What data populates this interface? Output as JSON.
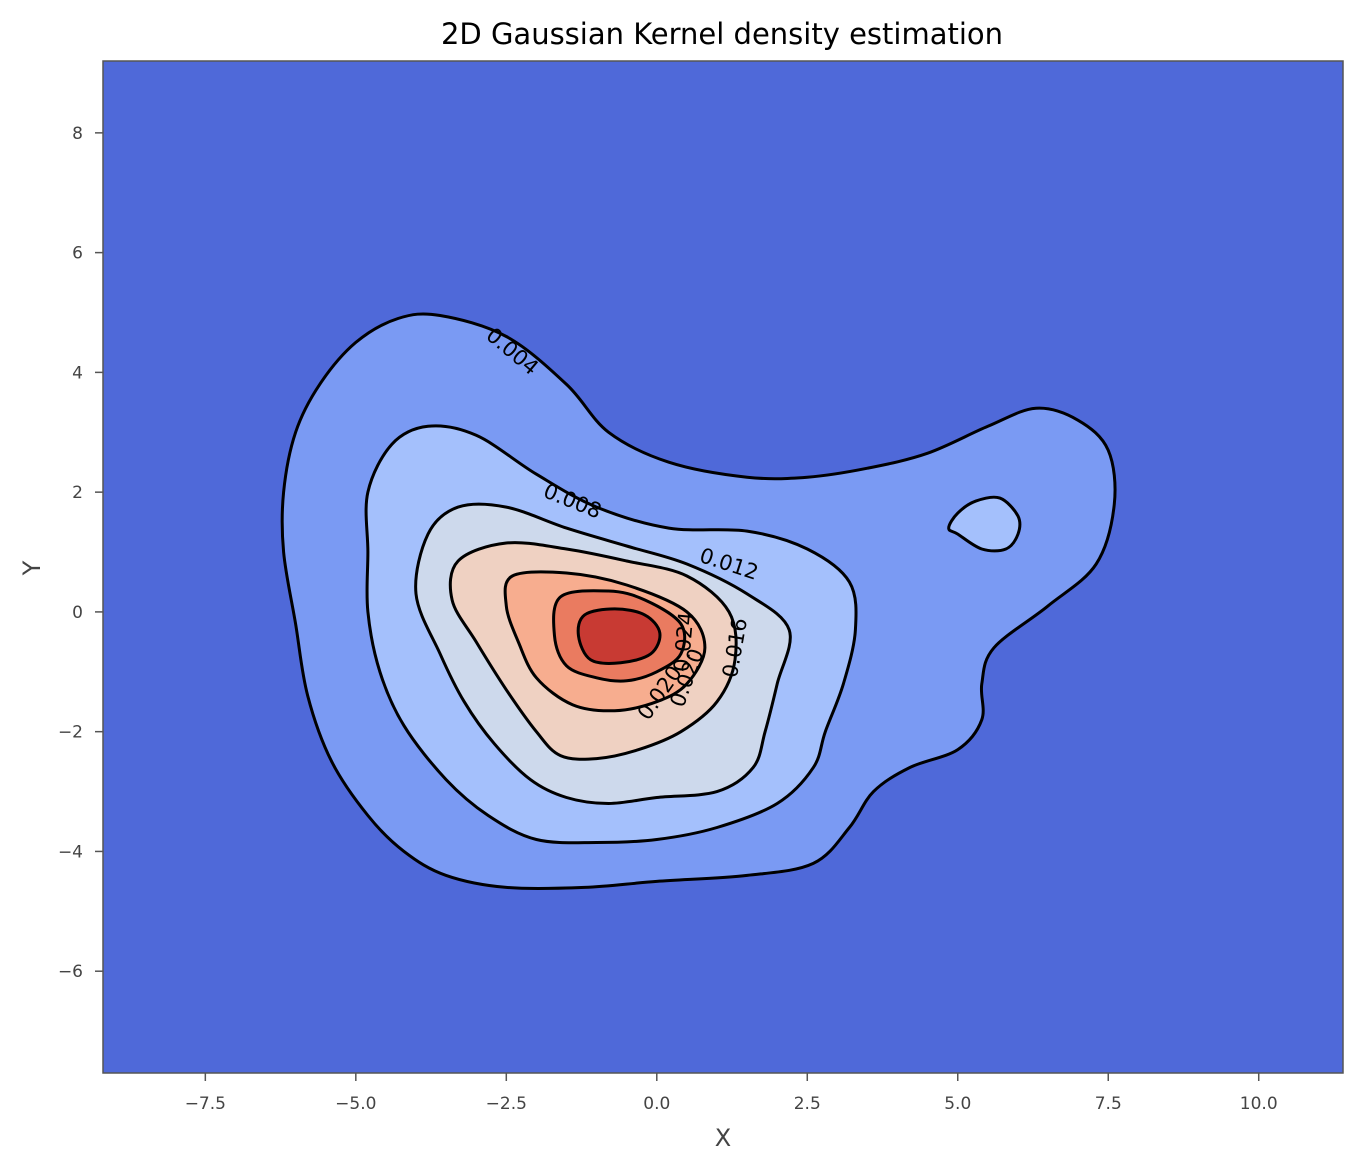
{
  "chart_data": {
    "type": "contour",
    "title": "2D Gaussian Kernel density estimation",
    "xlabel": "X",
    "ylabel": "Y",
    "xlim": [
      -9.2,
      11.4
    ],
    "ylim": [
      -7.7,
      9.2
    ],
    "xticks": [
      -7.5,
      -5.0,
      -2.5,
      0.0,
      2.5,
      5.0,
      7.5,
      10.0
    ],
    "xtick_labels": [
      "−7.5",
      "−5.0",
      "−2.5",
      "0.0",
      "2.5",
      "5.0",
      "7.5",
      "10.0"
    ],
    "yticks": [
      -6,
      -4,
      -2,
      0,
      2,
      4,
      6,
      8
    ],
    "ytick_labels": [
      "−6",
      "−4",
      "−2",
      "0",
      "2",
      "4",
      "6",
      "8"
    ],
    "grid": false,
    "colormap": "coolwarm",
    "level_colors": [
      "#4f69d9",
      "#7a9af3",
      "#a4c0fc",
      "#cdd9ec",
      "#efd1c2",
      "#f7ad8f",
      "#ea7b60",
      "#c83a33"
    ],
    "line_color": "#000000",
    "levels": [
      {
        "value": 0.004,
        "label": "0.004",
        "polygons": [
          [
            [
              -3.6,
              4.95
            ],
            [
              -2.5,
              4.6
            ],
            [
              -1.5,
              3.8
            ],
            [
              -0.8,
              3.0
            ],
            [
              0.2,
              2.5
            ],
            [
              1.5,
              2.25
            ],
            [
              2.5,
              2.25
            ],
            [
              3.5,
              2.4
            ],
            [
              4.5,
              2.65
            ],
            [
              5.5,
              3.1
            ],
            [
              6.3,
              3.4
            ],
            [
              7.0,
              3.2
            ],
            [
              7.5,
              2.7
            ],
            [
              7.6,
              1.8
            ],
            [
              7.3,
              0.8
            ],
            [
              6.5,
              0.1
            ],
            [
              5.6,
              -0.6
            ],
            [
              5.4,
              -1.2
            ],
            [
              5.4,
              -1.8
            ],
            [
              5.0,
              -2.3
            ],
            [
              4.2,
              -2.6
            ],
            [
              3.6,
              -3.0
            ],
            [
              3.2,
              -3.6
            ],
            [
              2.6,
              -4.2
            ],
            [
              1.5,
              -4.4
            ],
            [
              0.0,
              -4.5
            ],
            [
              -1.2,
              -4.6
            ],
            [
              -2.5,
              -4.6
            ],
            [
              -3.5,
              -4.4
            ],
            [
              -4.2,
              -4.0
            ],
            [
              -4.8,
              -3.4
            ],
            [
              -5.4,
              -2.5
            ],
            [
              -5.8,
              -1.4
            ],
            [
              -6.0,
              -0.2
            ],
            [
              -6.2,
              1.0
            ],
            [
              -6.2,
              2.0
            ],
            [
              -6.0,
              3.0
            ],
            [
              -5.6,
              3.8
            ],
            [
              -5.0,
              4.5
            ],
            [
              -4.3,
              4.9
            ]
          ]
        ]
      },
      {
        "value": 0.008,
        "label": "0.008",
        "polygons": [
          [
            [
              -3.8,
              3.1
            ],
            [
              -3.0,
              2.95
            ],
            [
              -2.0,
              2.3
            ],
            [
              -1.0,
              1.75
            ],
            [
              0.2,
              1.4
            ],
            [
              1.5,
              1.35
            ],
            [
              2.5,
              1.05
            ],
            [
              3.2,
              0.5
            ],
            [
              3.3,
              -0.3
            ],
            [
              3.1,
              -1.2
            ],
            [
              2.8,
              -2.0
            ],
            [
              2.6,
              -2.6
            ],
            [
              2.0,
              -3.2
            ],
            [
              1.0,
              -3.6
            ],
            [
              0.0,
              -3.8
            ],
            [
              -1.0,
              -3.85
            ],
            [
              -2.0,
              -3.8
            ],
            [
              -2.8,
              -3.4
            ],
            [
              -3.5,
              -2.8
            ],
            [
              -4.2,
              -1.9
            ],
            [
              -4.6,
              -1.0
            ],
            [
              -4.8,
              0.0
            ],
            [
              -4.8,
              1.0
            ],
            [
              -4.8,
              2.0
            ],
            [
              -4.4,
              2.8
            ]
          ],
          [
            [
              5.0,
              1.3
            ],
            [
              5.4,
              1.05
            ],
            [
              5.8,
              1.05
            ],
            [
              6.0,
              1.3
            ],
            [
              6.0,
              1.6
            ],
            [
              5.7,
              1.9
            ],
            [
              5.3,
              1.85
            ],
            [
              5.0,
              1.65
            ],
            [
              4.85,
              1.4
            ]
          ]
        ]
      },
      {
        "value": 0.012,
        "label": "0.012",
        "polygons": [
          [
            [
              -3.3,
              1.75
            ],
            [
              -2.5,
              1.75
            ],
            [
              -1.5,
              1.4
            ],
            [
              -0.5,
              1.1
            ],
            [
              0.5,
              0.8
            ],
            [
              1.5,
              0.3
            ],
            [
              2.2,
              -0.3
            ],
            [
              2.0,
              -1.2
            ],
            [
              1.8,
              -2.0
            ],
            [
              1.6,
              -2.6
            ],
            [
              1.0,
              -3.0
            ],
            [
              0.0,
              -3.1
            ],
            [
              -0.8,
              -3.2
            ],
            [
              -1.5,
              -3.1
            ],
            [
              -2.1,
              -2.8
            ],
            [
              -2.7,
              -2.2
            ],
            [
              -3.2,
              -1.5
            ],
            [
              -3.6,
              -0.7
            ],
            [
              -4.0,
              0.3
            ],
            [
              -3.8,
              1.3
            ]
          ]
        ]
      },
      {
        "value": 0.016,
        "label": "0.016",
        "polygons": [
          [
            [
              -3.3,
              0.85
            ],
            [
              -2.5,
              1.15
            ],
            [
              -1.5,
              1.05
            ],
            [
              -0.5,
              0.85
            ],
            [
              0.5,
              0.6
            ],
            [
              1.2,
              0.0
            ],
            [
              1.3,
              -0.8
            ],
            [
              1.0,
              -1.5
            ],
            [
              0.4,
              -2.0
            ],
            [
              -0.3,
              -2.3
            ],
            [
              -1.0,
              -2.45
            ],
            [
              -1.6,
              -2.4
            ],
            [
              -2.0,
              -2.0
            ],
            [
              -2.5,
              -1.3
            ],
            [
              -3.0,
              -0.5
            ],
            [
              -3.4,
              0.2
            ]
          ]
        ]
      },
      {
        "value": 0.02,
        "label": "0.020",
        "polygons": [
          [
            [
              -2.4,
              0.6
            ],
            [
              -1.5,
              0.65
            ],
            [
              -0.5,
              0.45
            ],
            [
              0.5,
              0.0
            ],
            [
              0.8,
              -0.6
            ],
            [
              0.5,
              -1.2
            ],
            [
              0.0,
              -1.5
            ],
            [
              -0.7,
              -1.65
            ],
            [
              -1.4,
              -1.55
            ],
            [
              -2.0,
              -1.1
            ],
            [
              -2.3,
              -0.5
            ],
            [
              -2.5,
              0.1
            ]
          ]
        ]
      },
      {
        "value": 0.024,
        "label": "0.024",
        "polygons": [
          [
            [
              -1.6,
              0.25
            ],
            [
              -0.8,
              0.35
            ],
            [
              -0.2,
              0.2
            ],
            [
              0.4,
              -0.2
            ],
            [
              0.4,
              -0.7
            ],
            [
              0.0,
              -1.0
            ],
            [
              -0.5,
              -1.15
            ],
            [
              -1.0,
              -1.1
            ],
            [
              -1.5,
              -0.9
            ],
            [
              -1.7,
              -0.4
            ]
          ]
        ]
      },
      {
        "value": 0.028,
        "label": "",
        "polygons": [
          [
            [
              -1.2,
              -0.05
            ],
            [
              -0.7,
              0.05
            ],
            [
              -0.2,
              -0.05
            ],
            [
              0.05,
              -0.35
            ],
            [
              -0.1,
              -0.7
            ],
            [
              -0.6,
              -0.85
            ],
            [
              -1.1,
              -0.8
            ],
            [
              -1.3,
              -0.4
            ]
          ]
        ]
      }
    ],
    "contour_labels": [
      {
        "text": "0.004",
        "x": -2.4,
        "y": 4.35,
        "angle": 40
      },
      {
        "text": "0.008",
        "x": -1.4,
        "y": 1.85,
        "angle": 22
      },
      {
        "text": "0.012",
        "x": 1.2,
        "y": 0.8,
        "angle": 18
      },
      {
        "text": "0.016",
        "x": 1.3,
        "y": -0.6,
        "angle": -80
      },
      {
        "text": "0.020",
        "x": 0.5,
        "y": -1.1,
        "angle": -70
      },
      {
        "text": "0.024",
        "x": 0.45,
        "y": -0.5,
        "angle": -85
      },
      {
        "text": "0.020",
        "x": 0.05,
        "y": -1.35,
        "angle": -55
      }
    ]
  }
}
